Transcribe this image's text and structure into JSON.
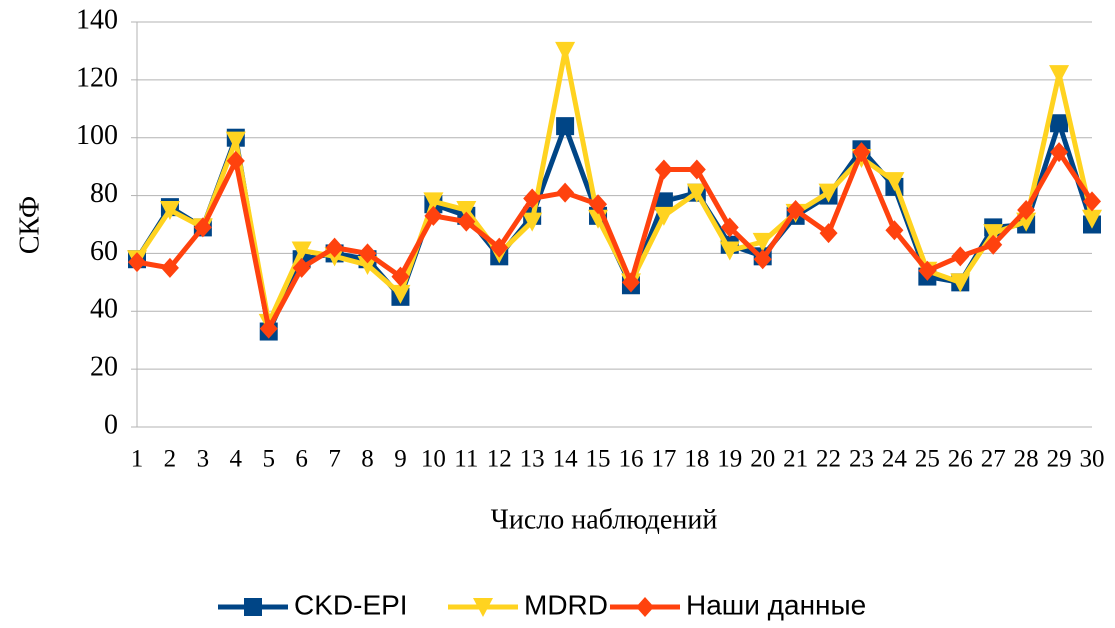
{
  "chart_data": {
    "type": "line",
    "x_label": "Число наблюдений",
    "y_label": "СКФ",
    "x": [
      1,
      2,
      3,
      4,
      5,
      6,
      7,
      8,
      9,
      10,
      11,
      12,
      13,
      14,
      15,
      16,
      17,
      18,
      19,
      20,
      21,
      22,
      23,
      24,
      25,
      26,
      27,
      28,
      29,
      30
    ],
    "xlim": [
      1,
      30
    ],
    "ylim": [
      0,
      140
    ],
    "yticks": [
      0,
      20,
      40,
      60,
      80,
      100,
      120,
      140
    ],
    "grid": true,
    "legend": "bottom",
    "series": [
      {
        "name": "CKD-EPI",
        "color": "#004586",
        "marker": "square",
        "values": [
          58,
          76,
          69,
          100,
          33,
          58,
          60,
          58,
          45,
          77,
          73,
          59,
          73,
          104,
          73,
          49,
          78,
          81,
          63,
          59,
          73,
          80,
          96,
          83,
          52,
          50,
          69,
          70,
          105,
          70
        ]
      },
      {
        "name": "MDRD",
        "color": "#ffd320",
        "marker": "triangle-down",
        "values": [
          58,
          75,
          69,
          99,
          36,
          61,
          59,
          56,
          46,
          78,
          75,
          60,
          71,
          130,
          72,
          50,
          73,
          81,
          61,
          64,
          74,
          81,
          93,
          85,
          54,
          50,
          67,
          71,
          122,
          72
        ]
      },
      {
        "name": "Наши данные",
        "color": "#ff420e",
        "marker": "diamond",
        "values": [
          57,
          55,
          69,
          92,
          34,
          55,
          62,
          60,
          52,
          73,
          71,
          62,
          79,
          81,
          77,
          50,
          89,
          89,
          69,
          58,
          75,
          67,
          95,
          68,
          54,
          59,
          63,
          75,
          95,
          78
        ]
      }
    ]
  }
}
